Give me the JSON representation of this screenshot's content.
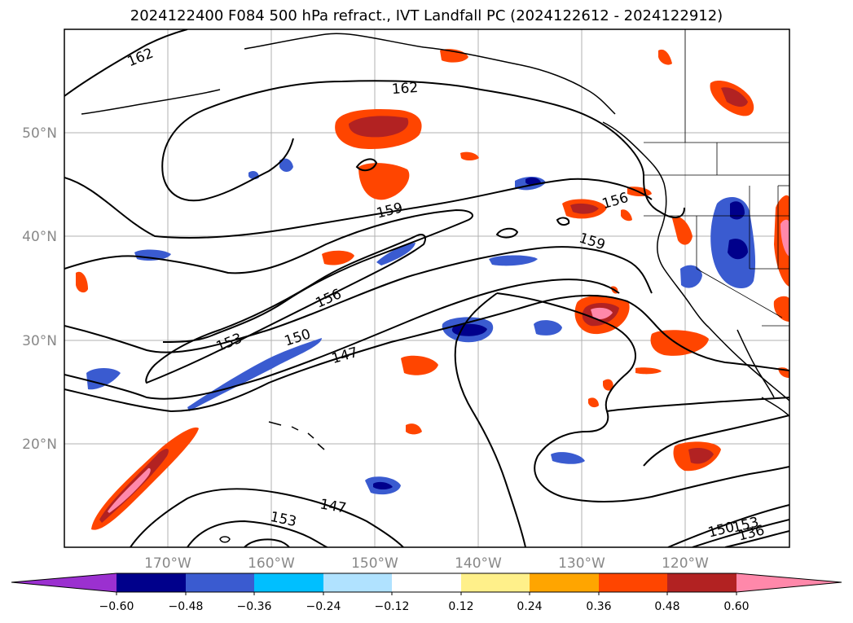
{
  "title": "2024122400 F084 500 hPa refract., IVT Landfall PC (2024122612 - 2024122912)",
  "lat_labels": [
    "50°N",
    "40°N",
    "30°N",
    "20°N"
  ],
  "lon_labels": [
    "170°W",
    "160°W",
    "150°W",
    "140°W",
    "130°W",
    "120°W"
  ],
  "contour_labels": [
    "162",
    "162",
    "159",
    "159",
    "156",
    "156",
    "153",
    "153",
    "150",
    "150",
    "147",
    "147",
    "153",
    "136"
  ],
  "colorbar": {
    "ticks": [
      "−0.60",
      "−0.48",
      "−0.36",
      "−0.24",
      "−0.12",
      "0.12",
      "0.24",
      "0.36",
      "0.48",
      "0.60"
    ],
    "colors": [
      "#9b30d0",
      "#00008b",
      "#3a5bd0",
      "#00bfff",
      "#b0e2ff",
      "#ffffff",
      "#fff08a",
      "#ffa500",
      "#ff4500",
      "#b22222",
      "#ff88aa",
      "#ff88aa"
    ]
  }
}
